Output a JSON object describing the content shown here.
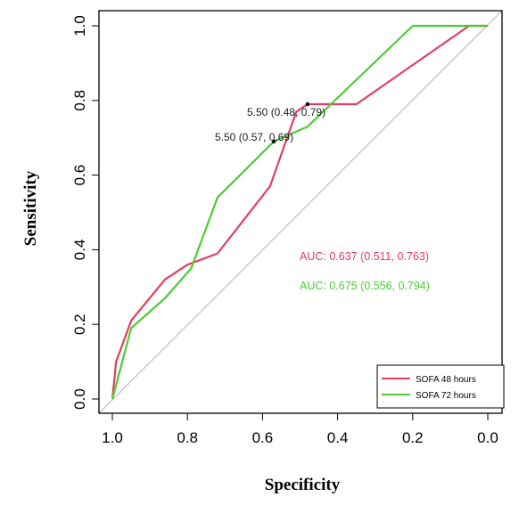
{
  "chart_data": {
    "type": "line",
    "xlabel": "Specificity",
    "ylabel": "Sensitivity",
    "xlim": [
      1.0,
      0.0
    ],
    "ylim": [
      0.0,
      1.0
    ],
    "x_reversed": true,
    "x_ticks": [
      "1.0",
      "0.8",
      "0.6",
      "0.4",
      "0.2",
      "0.0"
    ],
    "y_ticks": [
      "0.0",
      "0.2",
      "0.4",
      "0.6",
      "0.8",
      "1.0"
    ],
    "grid": false,
    "diagonal_reference": true,
    "legend_position": "bottom-right",
    "series": [
      {
        "name": "SOFA 48 hours",
        "color": "#e0405e",
        "points": [
          [
            1.0,
            0.0
          ],
          [
            0.99,
            0.1
          ],
          [
            0.95,
            0.21
          ],
          [
            0.86,
            0.32
          ],
          [
            0.8,
            0.36
          ],
          [
            0.72,
            0.39
          ],
          [
            0.58,
            0.57
          ],
          [
            0.51,
            0.77
          ],
          [
            0.48,
            0.79
          ],
          [
            0.35,
            0.79
          ],
          [
            0.05,
            1.0
          ],
          [
            0.0,
            1.0
          ]
        ]
      },
      {
        "name": "SOFA 72 hours",
        "color": "#4ccc33",
        "points": [
          [
            1.0,
            0.0
          ],
          [
            0.95,
            0.19
          ],
          [
            0.86,
            0.27
          ],
          [
            0.79,
            0.35
          ],
          [
            0.72,
            0.54
          ],
          [
            0.57,
            0.69
          ],
          [
            0.48,
            0.73
          ],
          [
            0.2,
            1.0
          ],
          [
            0.0,
            1.0
          ]
        ]
      }
    ],
    "threshold_annotations": [
      {
        "text": "5.50 (0.48, 0.79)",
        "point": [
          0.48,
          0.79
        ]
      },
      {
        "text": "5.50 (0.57, 0.69)",
        "point": [
          0.57,
          0.69
        ]
      }
    ],
    "auc_labels": [
      {
        "text": "AUC: 0.637 (0.511, 0.763)",
        "color": "#e0405e"
      },
      {
        "text": "AUC: 0.675 (0.556, 0.794)",
        "color": "#4ccc33"
      }
    ]
  }
}
